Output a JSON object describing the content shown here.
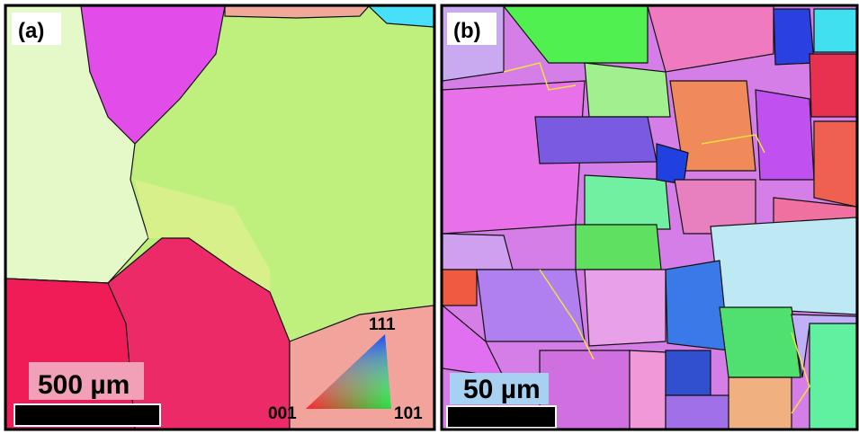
{
  "panels": [
    {
      "label": "(a)",
      "scale_bar": "500 µm",
      "legend": {
        "top": "111",
        "left": "001",
        "right": "101"
      }
    },
    {
      "label": "(b)",
      "scale_bar": "50 µm"
    }
  ]
}
